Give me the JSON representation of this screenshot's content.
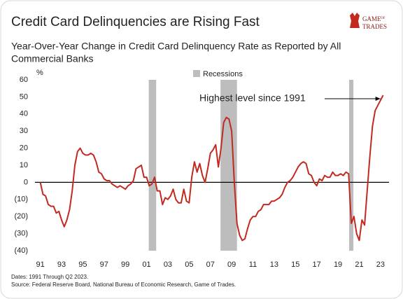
{
  "chart_data": {
    "type": "line",
    "title": "Credit Card Delinquencies are Rising Fast",
    "subtitle": [
      "Year-Over-Year Change in Credit Card Delinquency Rate as Reported by All",
      "Commercial Banks"
    ],
    "logo": [
      "GAME",
      "OF",
      "TRADES"
    ],
    "y_unit": "%",
    "annotation": "Highest level since 1991",
    "notes": [
      "Dates: 1991 Through Q2 2023.",
      "Source: Federal Reserve Board, National Bureau of Economic Research, Game of Trades."
    ],
    "color": "#c22a20",
    "x": [
      1991,
      1991.25,
      1991.5,
      1991.75,
      1992,
      1992.25,
      1992.5,
      1992.75,
      1993,
      1993.25,
      1993.5,
      1993.75,
      1994,
      1994.25,
      1994.5,
      1994.75,
      1995,
      1995.25,
      1995.5,
      1995.75,
      1996,
      1996.25,
      1996.5,
      1996.75,
      1997,
      1997.25,
      1997.5,
      1997.75,
      1998,
      1998.25,
      1998.5,
      1998.75,
      1999,
      1999.25,
      1999.5,
      1999.75,
      2000,
      2000.25,
      2000.5,
      2000.75,
      2001,
      2001.25,
      2001.5,
      2001.75,
      2002,
      2002.25,
      2002.5,
      2002.75,
      2003,
      2003.25,
      2003.5,
      2003.75,
      2004,
      2004.25,
      2004.5,
      2004.75,
      2005,
      2005.25,
      2005.5,
      2005.75,
      2006,
      2006.25,
      2006.5,
      2006.75,
      2007,
      2007.25,
      2007.5,
      2007.75,
      2008,
      2008.25,
      2008.5,
      2008.75,
      2009,
      2009.25,
      2009.5,
      2009.75,
      2010,
      2010.25,
      2010.5,
      2010.75,
      2011,
      2011.25,
      2011.5,
      2011.75,
      2012,
      2012.25,
      2012.5,
      2012.75,
      2013,
      2013.25,
      2013.5,
      2013.75,
      2014,
      2014.25,
      2014.5,
      2014.75,
      2015,
      2015.25,
      2015.5,
      2015.75,
      2016,
      2016.25,
      2016.5,
      2016.75,
      2017,
      2017.25,
      2017.5,
      2017.75,
      2018,
      2018.25,
      2018.5,
      2018.75,
      2019,
      2019.25,
      2019.5,
      2019.75,
      2020,
      2020.25,
      2020.5,
      2020.75,
      2021,
      2021.25,
      2021.5,
      2021.75,
      2022,
      2022.25,
      2022.5,
      2022.75,
      2023,
      2023.25
    ],
    "values": [
      0,
      -7,
      -8,
      -13,
      -14,
      -14,
      -18,
      -17,
      -22,
      -26,
      -22,
      -16,
      -5,
      10,
      18,
      20,
      17,
      16,
      16,
      17,
      16,
      12,
      6,
      5,
      2,
      1,
      1,
      -1,
      -2,
      -3,
      -2,
      -3,
      -4,
      -2,
      -1,
      1,
      8,
      9,
      10,
      3,
      3,
      -2,
      -1,
      3,
      -5,
      -5,
      -13,
      -9,
      -10,
      -8,
      -4,
      -10,
      -12,
      -12,
      -4,
      -11,
      -12,
      3,
      12,
      6,
      11,
      4,
      0,
      8,
      17,
      19,
      22,
      9,
      20,
      35,
      38,
      37,
      30,
      0,
      -24,
      -31,
      -34,
      -33,
      -27,
      -22,
      -20,
      -20,
      -17,
      -16,
      -13,
      -13,
      -13,
      -11,
      -11,
      -10,
      -9,
      -7,
      -3,
      0,
      1,
      3,
      6,
      9,
      11,
      12,
      11,
      5,
      4,
      0,
      -2,
      2,
      1,
      4,
      3,
      3,
      6,
      4,
      4,
      5,
      4,
      6,
      5,
      -24,
      -20,
      -30,
      -34,
      -22,
      -25,
      -5,
      15,
      33,
      42,
      45,
      48,
      51
    ],
    "recessions_label": "Recessions",
    "recessions": [
      [
        2001.2,
        2001.9
      ],
      [
        2007.95,
        2009.5
      ],
      [
        2020.05,
        2020.45
      ]
    ],
    "xlim": [
      1990.5,
      2023.8
    ],
    "ylim": [
      -40,
      60
    ],
    "xticks": [
      {
        "value": 1991,
        "label": "91"
      },
      {
        "value": 1993,
        "label": "93"
      },
      {
        "value": 1995,
        "label": "95"
      },
      {
        "value": 1997,
        "label": "97"
      },
      {
        "value": 1999,
        "label": "99"
      },
      {
        "value": 2001,
        "label": "01"
      },
      {
        "value": 2003,
        "label": "03"
      },
      {
        "value": 2005,
        "label": "05"
      },
      {
        "value": 2007,
        "label": "07"
      },
      {
        "value": 2009,
        "label": "09"
      },
      {
        "value": 2011,
        "label": "11"
      },
      {
        "value": 2013,
        "label": "13"
      },
      {
        "value": 2015,
        "label": "15"
      },
      {
        "value": 2017,
        "label": "17"
      },
      {
        "value": 2019,
        "label": "19"
      },
      {
        "value": 2021,
        "label": "21"
      },
      {
        "value": 2023,
        "label": "23"
      }
    ],
    "yticks": [
      60,
      50,
      40,
      30,
      20,
      10,
      0,
      {
        "value": -10,
        "label": "(10)"
      },
      {
        "value": -20,
        "label": "(20)"
      },
      {
        "value": -30,
        "label": "(30)"
      },
      {
        "value": -40,
        "label": "(40)"
      }
    ]
  }
}
